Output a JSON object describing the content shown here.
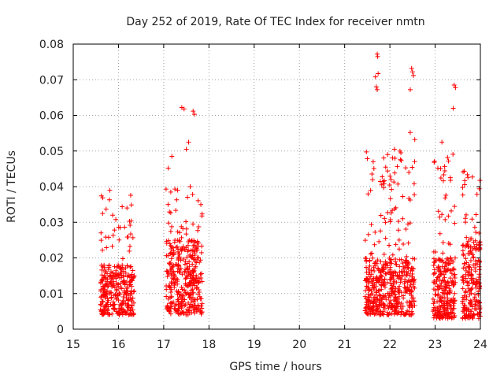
{
  "chart_data": {
    "type": "scatter",
    "title": "Day 252 of 2019, Rate Of TEC Index for receiver nmtn",
    "xlabel": "GPS time / hours",
    "ylabel": "ROTI / TECUs",
    "xlim": [
      15,
      24
    ],
    "ylim": [
      0,
      0.08
    ],
    "grid": true,
    "marker": "plus",
    "color": "#ff0000",
    "x_ticks": [
      "15",
      "16",
      "17",
      "18",
      "19",
      "20",
      "21",
      "22",
      "23",
      "24"
    ],
    "y_ticks": [
      "0",
      "0.01",
      "0.02",
      "0.03",
      "0.04",
      "0.05",
      "0.06",
      "0.07",
      "0.08"
    ],
    "clusters": [
      {
        "x_start": 15.6,
        "x_end": 16.35,
        "y_base_min": 0.004,
        "y_base_max": 0.018,
        "y_top": 0.041,
        "count": 320
      },
      {
        "x_start": 17.05,
        "x_end": 17.85,
        "y_base_min": 0.004,
        "y_base_max": 0.025,
        "y_top": 0.04,
        "count": 380
      },
      {
        "x_start": 21.45,
        "x_end": 22.55,
        "y_base_min": 0.004,
        "y_base_max": 0.02,
        "y_top": 0.05,
        "count": 520
      },
      {
        "x_start": 22.95,
        "x_end": 23.45,
        "y_base_min": 0.003,
        "y_base_max": 0.02,
        "y_top": 0.05,
        "count": 260
      },
      {
        "x_start": 23.6,
        "x_end": 24.0,
        "y_base_min": 0.003,
        "y_base_max": 0.025,
        "y_top": 0.045,
        "count": 220
      }
    ],
    "outliers": [
      {
        "x": 17.4,
        "y": 0.0622
      },
      {
        "x": 17.45,
        "y": 0.0618
      },
      {
        "x": 17.65,
        "y": 0.0612
      },
      {
        "x": 17.68,
        "y": 0.0603
      },
      {
        "x": 17.1,
        "y": 0.0452
      },
      {
        "x": 17.18,
        "y": 0.0485
      },
      {
        "x": 17.55,
        "y": 0.0525
      },
      {
        "x": 17.5,
        "y": 0.0505
      },
      {
        "x": 21.72,
        "y": 0.0772
      },
      {
        "x": 21.73,
        "y": 0.0765
      },
      {
        "x": 21.74,
        "y": 0.0717
      },
      {
        "x": 21.68,
        "y": 0.0708
      },
      {
        "x": 21.7,
        "y": 0.068
      },
      {
        "x": 21.72,
        "y": 0.0672
      },
      {
        "x": 22.48,
        "y": 0.0732
      },
      {
        "x": 22.5,
        "y": 0.0722
      },
      {
        "x": 22.52,
        "y": 0.0712
      },
      {
        "x": 22.45,
        "y": 0.0672
      },
      {
        "x": 22.45,
        "y": 0.0552
      },
      {
        "x": 22.55,
        "y": 0.0532
      },
      {
        "x": 23.42,
        "y": 0.0685
      },
      {
        "x": 23.45,
        "y": 0.0678
      },
      {
        "x": 23.4,
        "y": 0.062
      },
      {
        "x": 23.15,
        "y": 0.0525
      },
      {
        "x": 22.1,
        "y": 0.0505
      },
      {
        "x": 21.95,
        "y": 0.049
      }
    ]
  }
}
